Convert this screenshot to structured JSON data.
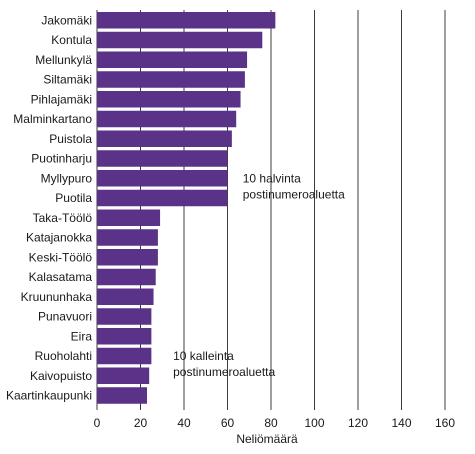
{
  "chart_data": {
    "type": "bar",
    "orientation": "horizontal",
    "categories": [
      "Jakomäki",
      "Kontula",
      "Mellunkylä",
      "Siltamäki",
      "Pihlajamäki",
      "Malminkartano",
      "Puistola",
      "Puotinharju",
      "Myllypuro",
      "Puotila",
      "Taka-Töölö",
      "Katajanokka",
      "Keski-Töölö",
      "Kalasatama",
      "Kruununhaka",
      "Punavuori",
      "Eira",
      "Ruoholahti",
      "Kaivopuisto",
      "Kaartinkaupunki"
    ],
    "values": [
      82,
      76,
      69,
      68,
      66,
      64,
      62,
      60,
      60,
      60,
      29,
      28,
      28,
      27,
      26,
      25,
      25,
      25,
      24,
      23
    ],
    "xlabel": "Neliömäärä",
    "ylabel": "",
    "title": "",
    "xlim": [
      0,
      160
    ],
    "xticks": [
      0,
      20,
      40,
      60,
      80,
      100,
      120,
      140,
      160
    ],
    "grid": "vertical",
    "bar_color": "#5a3287",
    "grid_color": "#3c3c3c",
    "annotations": [
      {
        "lines": [
          "10 halvinta",
          "postinumeroaluetta"
        ],
        "near_category": "Myllypuro",
        "x": 67
      },
      {
        "lines": [
          "10 kalleinta",
          "postinumeroaluetta"
        ],
        "near_category": "Ruoholahti",
        "x": 35
      }
    ]
  }
}
